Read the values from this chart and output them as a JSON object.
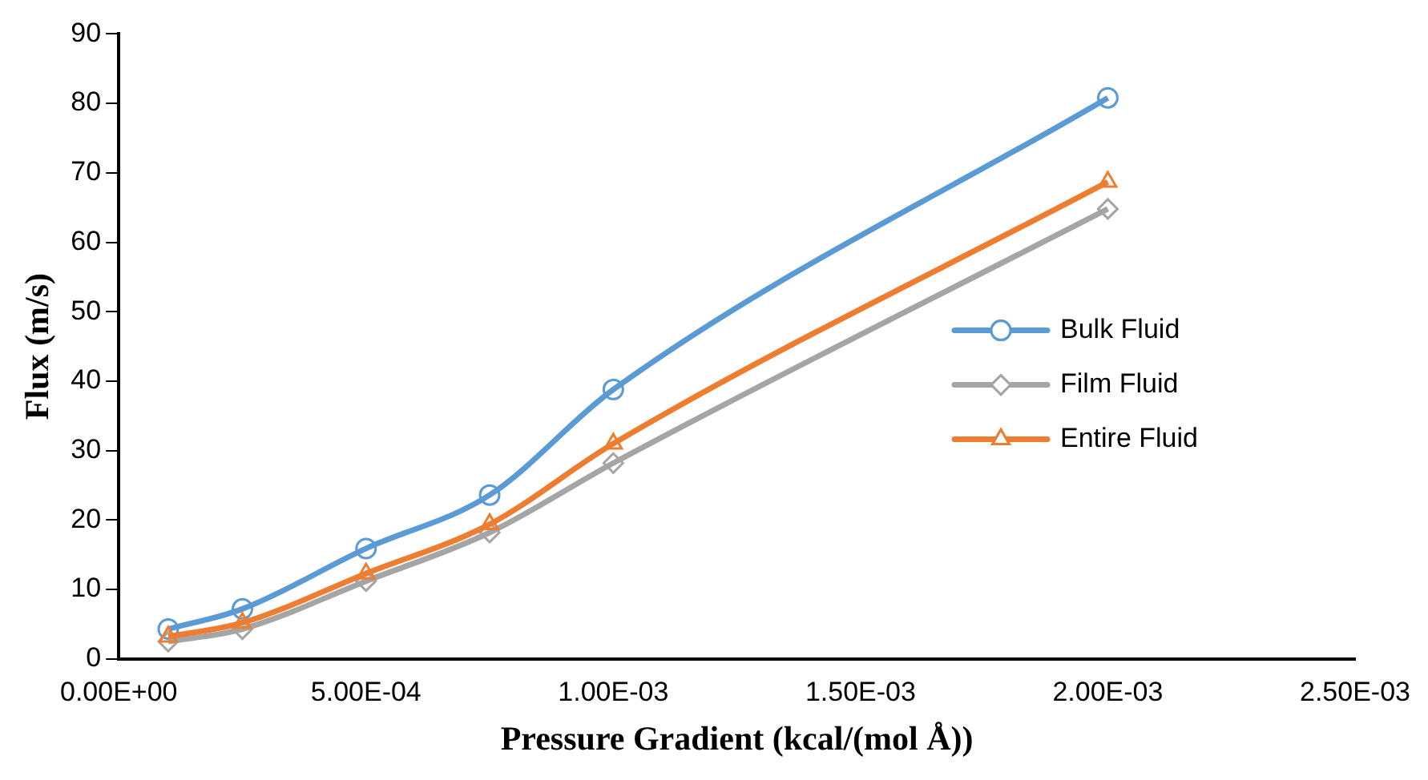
{
  "chart_data": {
    "type": "line",
    "xlabel": "Pressure Gradient (kcal/(mol Å))",
    "ylabel": "Flux (m/s)",
    "xlim": [
      0,
      0.0025
    ],
    "xticks": [
      {
        "value": 0,
        "label": "0.00E+00"
      },
      {
        "value": 0.0005,
        "label": "5.00E-04"
      },
      {
        "value": 0.001,
        "label": "1.00E-03"
      },
      {
        "value": 0.0015,
        "label": "1.50E-03"
      },
      {
        "value": 0.002,
        "label": "2.00E-03"
      },
      {
        "value": 0.0025,
        "label": "2.50E-03"
      }
    ],
    "ylim": [
      0,
      90
    ],
    "yticks": [
      0,
      10,
      20,
      30,
      40,
      50,
      60,
      70,
      80,
      90
    ],
    "x": [
      0.0001,
      0.00025,
      0.0005,
      0.00075,
      0.001,
      0.002
    ],
    "series": [
      {
        "name": "Bulk Fluid",
        "color": "#5b9bd5",
        "marker": "circle",
        "values": [
          4.3,
          7.2,
          15.9,
          23.6,
          38.8,
          80.8
        ]
      },
      {
        "name": "Film Fluid",
        "color": "#a5a5a5",
        "marker": "diamond",
        "values": [
          2.5,
          4.3,
          11.2,
          18.2,
          28.2,
          64.8
        ]
      },
      {
        "name": "Entire Fluid",
        "color": "#ed7d31",
        "marker": "triangle",
        "values": [
          3.2,
          5.2,
          12.3,
          19.4,
          31.0,
          68.7
        ]
      }
    ],
    "grid": false,
    "legend": "right"
  }
}
